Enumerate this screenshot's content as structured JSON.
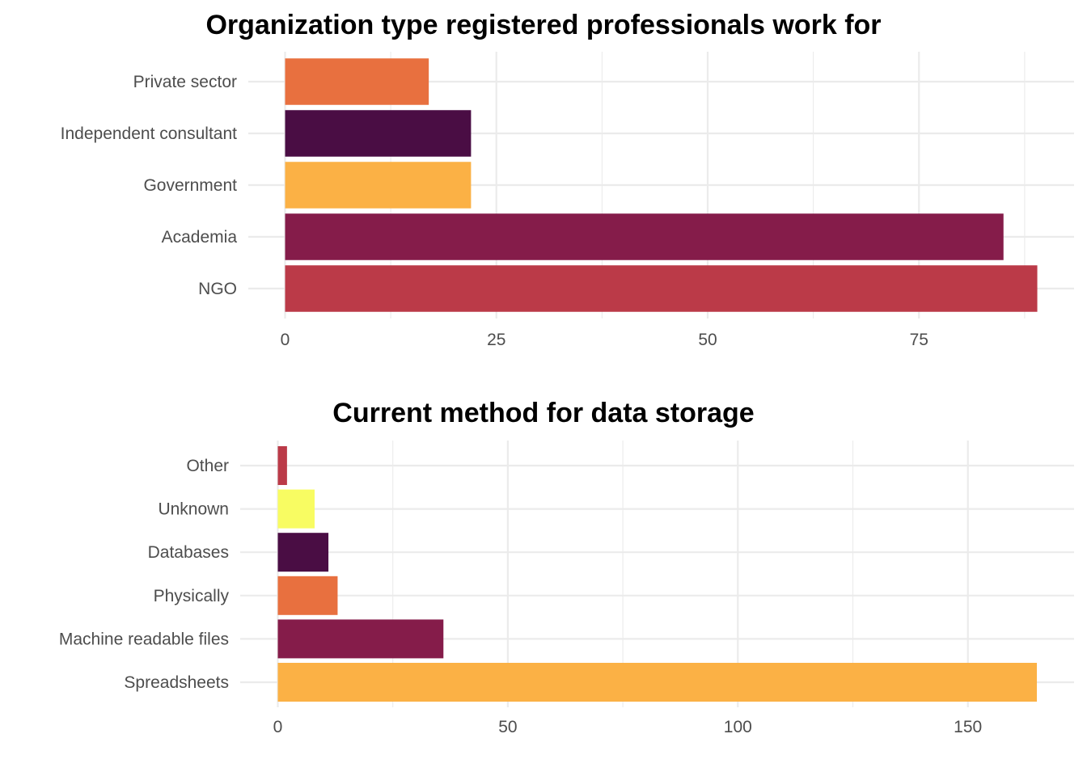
{
  "chart_data": [
    {
      "type": "bar",
      "orientation": "horizontal",
      "title": "Organization type registered professionals work for",
      "xlabel": "",
      "ylabel": "",
      "categories": [
        "NGO",
        "Academia",
        "Government",
        "Independent consultant",
        "Private sector"
      ],
      "values": [
        89,
        85,
        22,
        22,
        17
      ],
      "colors": [
        "#BB3A48",
        "#851C4A",
        "#FBB145",
        "#4A0D44",
        "#E8703F"
      ],
      "xlim": [
        0,
        90
      ],
      "xticks": [
        0,
        25,
        50,
        75
      ],
      "xtick_labels": [
        "0",
        "25",
        "50",
        "75"
      ],
      "minor_ticks": [
        12.5,
        37.5,
        62.5,
        87.5
      ],
      "grid": true,
      "legend": "none"
    },
    {
      "type": "bar",
      "orientation": "horizontal",
      "title": "Current method for data storage",
      "xlabel": "",
      "ylabel": "",
      "categories": [
        "Spreadsheets",
        "Machine readable files",
        "Physically",
        "Databases",
        "Unknown",
        "Other"
      ],
      "values": [
        165,
        36,
        13,
        11,
        8,
        2
      ],
      "colors": [
        "#FBB145",
        "#851C4A",
        "#E8703F",
        "#4A0D44",
        "#F8FC62",
        "#BB3A48"
      ],
      "xlim": [
        0,
        170
      ],
      "xticks": [
        0,
        50,
        100,
        150
      ],
      "xtick_labels": [
        "0",
        "50",
        "100",
        "150"
      ],
      "minor_ticks": [
        25,
        75,
        125
      ],
      "grid": true,
      "legend": "none"
    }
  ]
}
